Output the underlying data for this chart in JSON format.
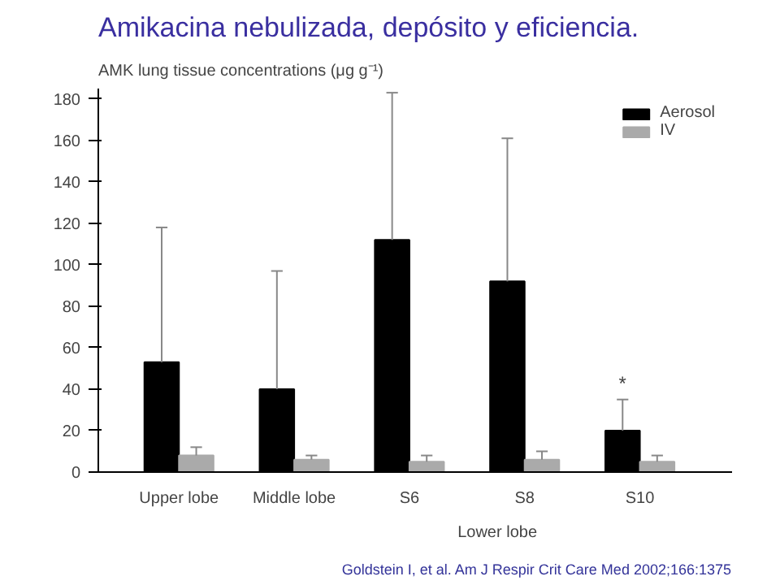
{
  "chart_data": {
    "type": "bar",
    "title": "Amikacina nebulizada, depósito y eficiencia.",
    "ylabel": "AMK lung tissue concentrations (μg g⁻¹)",
    "categories": [
      "Upper lobe",
      "Middle lobe",
      "S6",
      "S8",
      "S10"
    ],
    "series": [
      {
        "name": "Aerosol",
        "color": "#000000",
        "values": [
          53,
          40,
          112,
          92,
          20
        ],
        "errors": [
          65,
          57,
          71,
          69,
          15
        ]
      },
      {
        "name": "IV",
        "color": "#aaaaaa",
        "values": [
          8,
          6,
          5,
          6,
          5
        ],
        "errors": [
          4,
          2,
          3,
          4,
          3
        ]
      }
    ],
    "ylim": [
      0,
      185
    ],
    "yticks": [
      0,
      20,
      40,
      60,
      80,
      100,
      120,
      140,
      160,
      180
    ],
    "grid": false,
    "legend": "top right",
    "annotations": [
      "*",
      "Lower lobe",
      "Goldstein I, et al. Am J Respir Crit Care Med 2002;166:1375"
    ]
  }
}
